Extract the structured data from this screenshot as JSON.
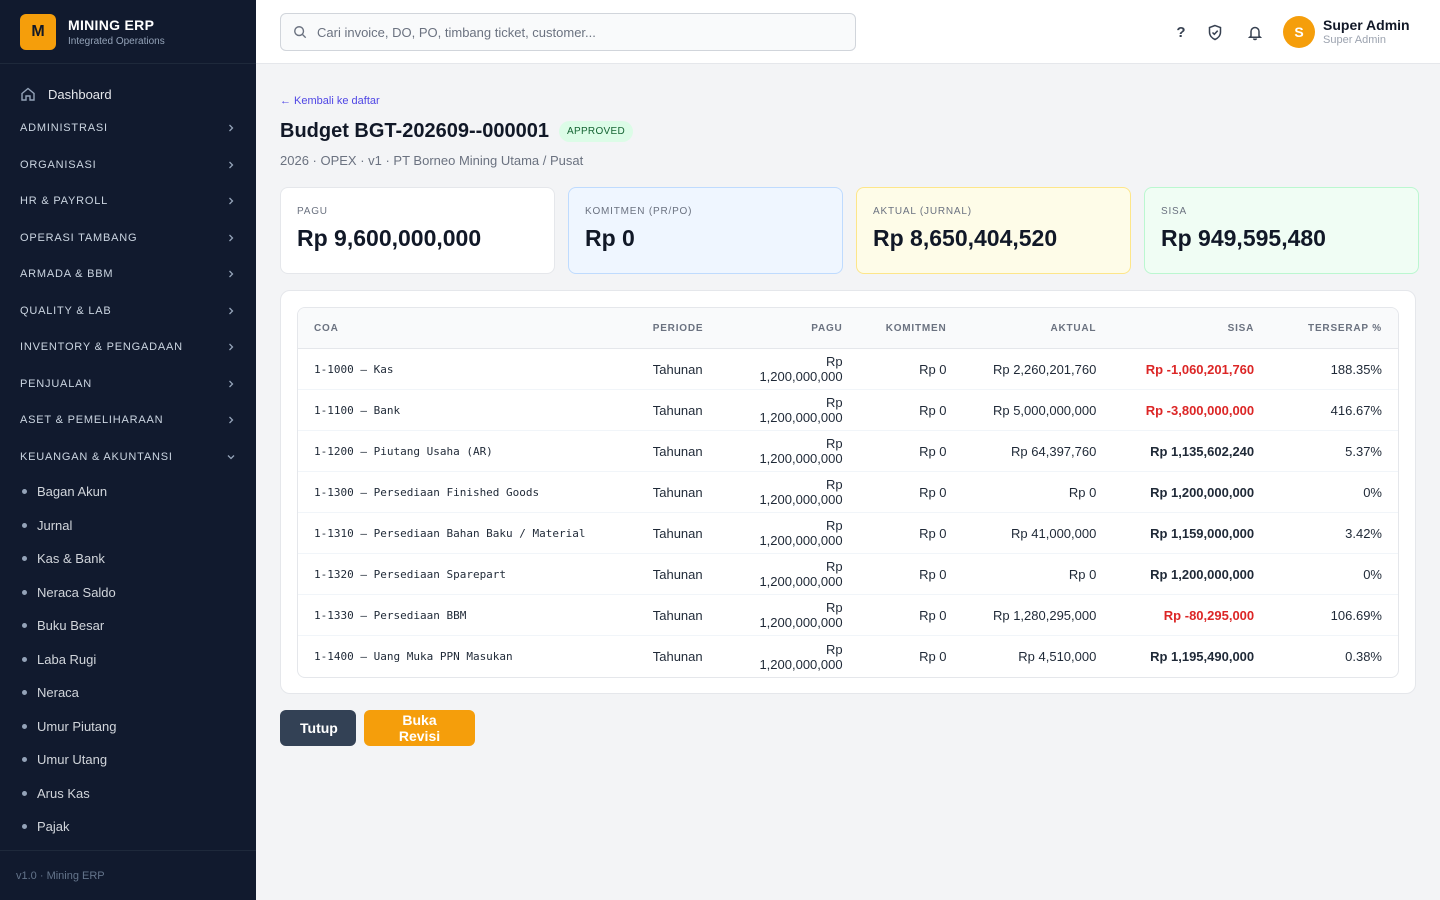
{
  "brand": {
    "logo": "M",
    "name": "MINING ERP",
    "subtitle": "Integrated Operations"
  },
  "sidebar": {
    "dashboard": "Dashboard",
    "groups": [
      "ADMINISTRASI",
      "ORGANISASI",
      "HR & PAYROLL",
      "OPERASI TAMBANG",
      "ARMADA & BBM",
      "QUALITY & LAB",
      "INVENTORY & PENGADAAN",
      "PENJUALAN",
      "ASET & PEMELIHARAAN",
      "KEUANGAN & AKUNTANSI"
    ],
    "expanded_group": "KEUANGAN & AKUNTANSI",
    "sub_items": [
      "Bagan Akun",
      "Jurnal",
      "Kas & Bank",
      "Neraca Saldo",
      "Buku Besar",
      "Laba Rugi",
      "Neraca",
      "Umur Piutang",
      "Umur Utang",
      "Arus Kas",
      "Pajak"
    ],
    "footer": "v1.0 · Mining ERP"
  },
  "header": {
    "search_placeholder": "Cari invoice, DO, PO, timbang ticket, customer...",
    "help": "?",
    "icons": [
      "help-icon",
      "shield-check-icon",
      "bell-icon"
    ],
    "user": {
      "initial": "S",
      "name": "Super Admin",
      "role": "Super Admin"
    }
  },
  "page": {
    "back": "← Kembali ke daftar",
    "title": "Budget BGT-202609--000001",
    "status": "APPROVED",
    "subtitle": "2026 · OPEX · v1 · PT Borneo Mining Utama / Pusat"
  },
  "cards": [
    {
      "label": "PAGU",
      "value": "Rp 9,600,000,000",
      "tone": "white"
    },
    {
      "label": "KOMITMEN (PR/PO)",
      "value": "Rp 0",
      "tone": "blue"
    },
    {
      "label": "AKTUAL (JURNAL)",
      "value": "Rp 8,650,404,520",
      "tone": "yellow"
    },
    {
      "label": "SISA",
      "value": "Rp 949,595,480",
      "tone": "green"
    }
  ],
  "table": {
    "columns": [
      "COA",
      "PERIODE",
      "PAGU",
      "KOMITMEN",
      "AKTUAL",
      "SISA",
      "TERSERAP %"
    ],
    "rows": [
      {
        "coa": "1-1000 — Kas",
        "periode": "Tahunan",
        "pagu": "Rp 1,200,000,000",
        "komitmen": "Rp 0",
        "aktual": "Rp 2,260,201,760",
        "sisa": "Rp -1,060,201,760",
        "terserap": "188.35%",
        "negative": true
      },
      {
        "coa": "1-1100 — Bank",
        "periode": "Tahunan",
        "pagu": "Rp 1,200,000,000",
        "komitmen": "Rp 0",
        "aktual": "Rp 5,000,000,000",
        "sisa": "Rp -3,800,000,000",
        "terserap": "416.67%",
        "negative": true
      },
      {
        "coa": "1-1200 — Piutang Usaha (AR)",
        "periode": "Tahunan",
        "pagu": "Rp 1,200,000,000",
        "komitmen": "Rp 0",
        "aktual": "Rp 64,397,760",
        "sisa": "Rp 1,135,602,240",
        "terserap": "5.37%",
        "negative": false
      },
      {
        "coa": "1-1300 — Persediaan Finished Goods",
        "periode": "Tahunan",
        "pagu": "Rp 1,200,000,000",
        "komitmen": "Rp 0",
        "aktual": "Rp 0",
        "sisa": "Rp 1,200,000,000",
        "terserap": "0%",
        "negative": false
      },
      {
        "coa": "1-1310 — Persediaan Bahan Baku / Material",
        "periode": "Tahunan",
        "pagu": "Rp 1,200,000,000",
        "komitmen": "Rp 0",
        "aktual": "Rp 41,000,000",
        "sisa": "Rp 1,159,000,000",
        "terserap": "3.42%",
        "negative": false
      },
      {
        "coa": "1-1320 — Persediaan Sparepart",
        "periode": "Tahunan",
        "pagu": "Rp 1,200,000,000",
        "komitmen": "Rp 0",
        "aktual": "Rp 0",
        "sisa": "Rp 1,200,000,000",
        "terserap": "0%",
        "negative": false
      },
      {
        "coa": "1-1330 — Persediaan BBM",
        "periode": "Tahunan",
        "pagu": "Rp 1,200,000,000",
        "komitmen": "Rp 0",
        "aktual": "Rp 1,280,295,000",
        "sisa": "Rp -80,295,000",
        "terserap": "106.69%",
        "negative": true
      },
      {
        "coa": "1-1400 — Uang Muka PPN Masukan",
        "periode": "Tahunan",
        "pagu": "Rp 1,200,000,000",
        "komitmen": "Rp 0",
        "aktual": "Rp 4,510,000",
        "sisa": "Rp 1,195,490,000",
        "terserap": "0.38%",
        "negative": false
      }
    ]
  },
  "actions": {
    "close": "Tutup",
    "revise": "Buka Revisi"
  },
  "colors": {
    "sidebar": "#111a2e",
    "accent": "#f59e0b",
    "negative": "#dc2626",
    "link": "#4f46e5"
  }
}
